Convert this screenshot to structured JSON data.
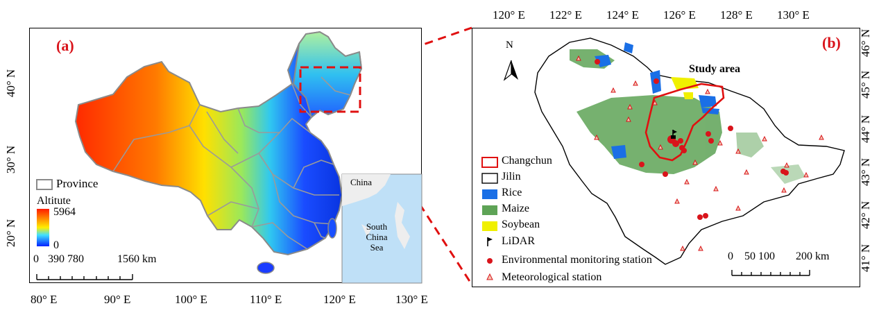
{
  "panel_a": {
    "label": "(a)",
    "x_ticks": [
      "80° E",
      "90° E",
      "100° E",
      "110° E",
      "120° E",
      "130° E"
    ],
    "y_ticks": [
      "40° N",
      "30° N",
      "20° N"
    ],
    "legend": {
      "province": "Province",
      "altitude_title": "Altitute",
      "altitude_max": "5964",
      "altitude_min": "0"
    },
    "scale_bar": {
      "labels": [
        "0",
        "390 780",
        "1560 km"
      ]
    },
    "inset": {
      "label_china": "China",
      "label_sea": "South China Sea"
    },
    "colors": {
      "high": "#ff2a00",
      "mid": "#ffee00",
      "low": "#0030ff",
      "border": "#9a9a9a"
    }
  },
  "panel_b": {
    "label": "(b)",
    "title": "Study area",
    "north_arrow": "N",
    "x_ticks": [
      "120° E",
      "122° E",
      "124° E",
      "126° E",
      "128° E",
      "130° E"
    ],
    "y_ticks": [
      "46° N",
      "45° N",
      "44° N",
      "43° N",
      "42° N",
      "41° N"
    ],
    "legend": [
      {
        "label": "Changchun",
        "symbol": "red-outline-box"
      },
      {
        "label": "Jilin",
        "symbol": "black-outline-box"
      },
      {
        "label": "Rice",
        "symbol": "blue-fill",
        "color": "#1a6fe6"
      },
      {
        "label": "Maize",
        "symbol": "green-fill",
        "color": "#5ea356"
      },
      {
        "label": "Soybean",
        "symbol": "yellow-fill",
        "color": "#f0f000"
      },
      {
        "label": "LiDAR",
        "symbol": "flag"
      },
      {
        "label": "Environmental monitoring station",
        "symbol": "red-dot",
        "color": "#d9141b"
      },
      {
        "label": "Meteorological station",
        "symbol": "triangle"
      }
    ],
    "scale_bar": {
      "labels": [
        "0",
        "50 100",
        "200 km"
      ]
    }
  }
}
